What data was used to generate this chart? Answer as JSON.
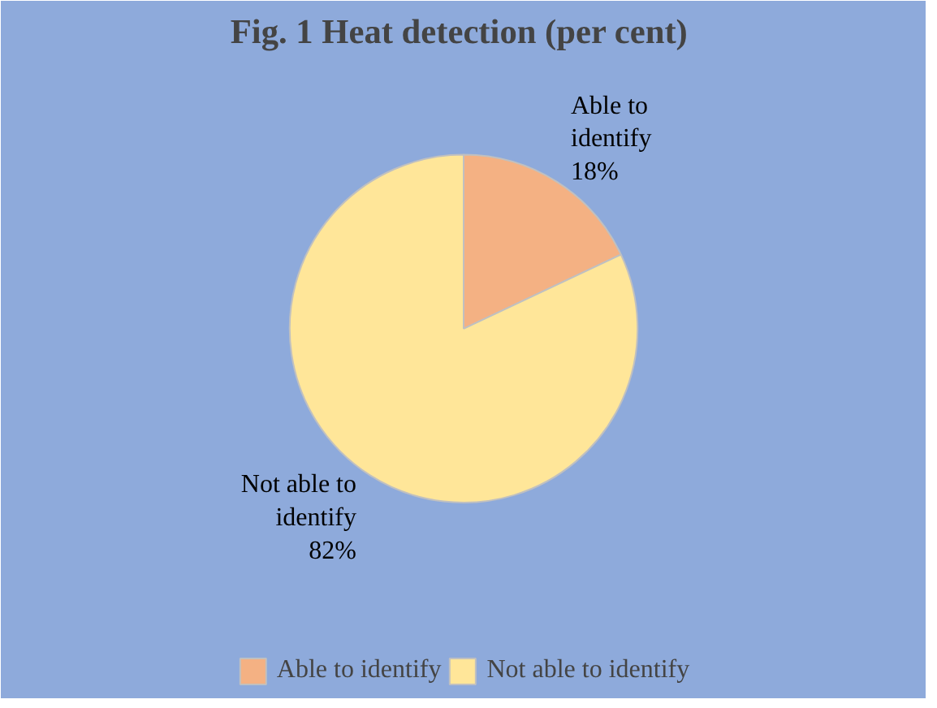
{
  "chart_data": {
    "type": "pie",
    "title": "Fig. 1  Heat detection (per cent)",
    "categories": [
      "Able to identify",
      "Not able to identify"
    ],
    "values": [
      18,
      82
    ],
    "colors": [
      "#f4b183",
      "#ffe699"
    ],
    "value_labels": [
      "18%",
      "82%"
    ],
    "legend": "bottom"
  }
}
